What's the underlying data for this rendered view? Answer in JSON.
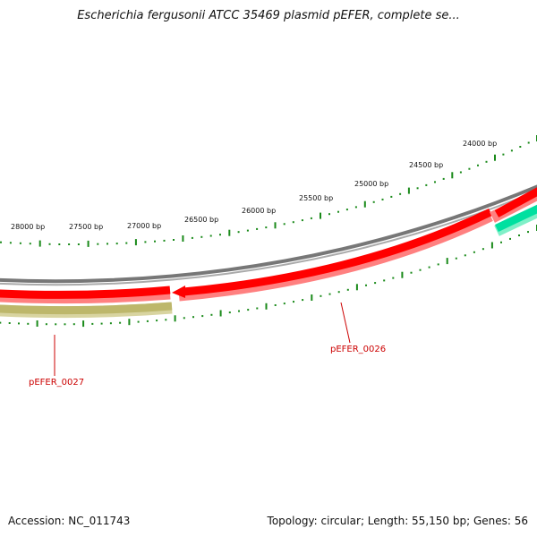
{
  "title": "Escherichia fergusonii ATCC 35469 plasmid pEFER, complete se...",
  "footer": {
    "accession": "Accession: NC_011743",
    "stats": "Topology: circular; Length: 55,150 bp; Genes: 56"
  },
  "scale_labels": [
    "28000 bp",
    "27500 bp",
    "27000 bp",
    "26500 bp",
    "26000 bp",
    "25500 bp",
    "25000 bp",
    "24500 bp",
    "24000 bp"
  ],
  "genes": [
    {
      "name": "pEFER_0027",
      "color": "#bdb76b"
    },
    {
      "name": "pEFER_0026",
      "color": "#ff0000"
    }
  ],
  "colors": {
    "backbone": "#888888",
    "forward_gene": "#ff0000",
    "gene_shadow": "#ff8080",
    "olive_gene": "#bdb76b",
    "teal_gene": "#00e0a0",
    "tick": "#1a8a1a",
    "label": "#cc0000"
  }
}
